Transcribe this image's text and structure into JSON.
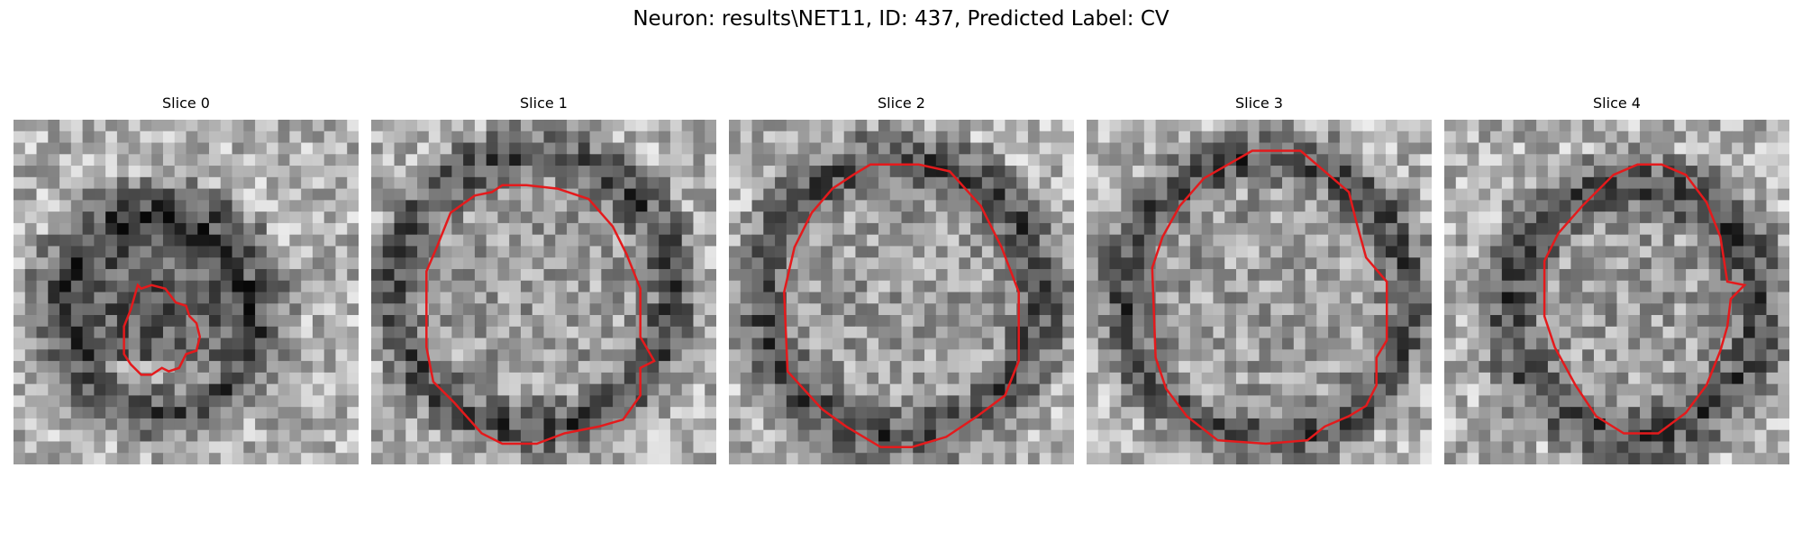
{
  "figure": {
    "title": "Neuron: results\\NET11, ID: 437, Predicted Label: CV",
    "slices": [
      {
        "title": "Slice 0"
      },
      {
        "title": "Slice 1"
      },
      {
        "title": "Slice 2"
      },
      {
        "title": "Slice 3"
      },
      {
        "title": "Slice 4"
      }
    ],
    "colors": {
      "contour": "#e41a1c",
      "background": "#ffffff"
    }
  }
}
